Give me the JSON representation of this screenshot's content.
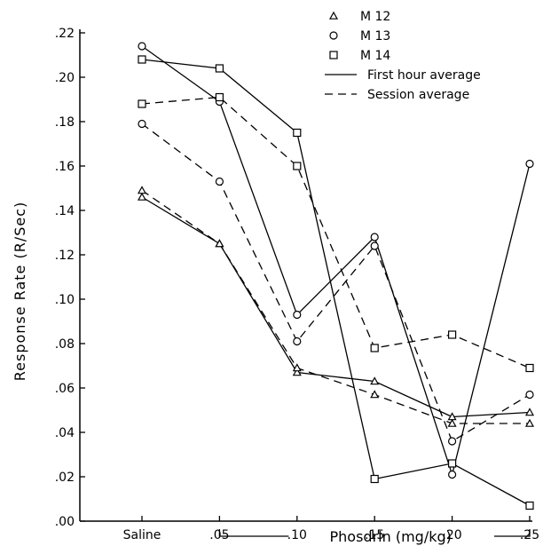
{
  "chart_data": {
    "type": "line",
    "title": "",
    "ylabel": "Response Rate (R/Sec)",
    "xlabel": "Phosdrin (mg/kg)",
    "categories": [
      "Saline",
      ".05",
      ".10",
      ".15",
      ".20",
      ".25"
    ],
    "y_ticks": [
      ".00",
      ".02",
      ".04",
      ".06",
      ".08",
      ".10",
      ".12",
      ".14",
      ".16",
      ".18",
      ".20",
      ".22"
    ],
    "ylim": [
      0,
      0.22
    ],
    "legend": {
      "placement": "top-right",
      "markers": [
        {
          "symbol": "triangle",
          "label": "M 12"
        },
        {
          "symbol": "circle",
          "label": "M 13"
        },
        {
          "symbol": "square",
          "label": "M 14"
        }
      ],
      "styles": [
        {
          "style": "solid",
          "label": "First hour average"
        },
        {
          "style": "dashed",
          "label": "Session average"
        }
      ]
    },
    "series": [
      {
        "subject": "M 12",
        "marker": "triangle",
        "style": "solid",
        "values": [
          0.146,
          0.125,
          0.067,
          0.063,
          0.047,
          0.049
        ]
      },
      {
        "subject": "M 12",
        "marker": "triangle",
        "style": "dashed",
        "values": [
          0.149,
          0.125,
          0.069,
          0.057,
          0.044,
          0.044
        ]
      },
      {
        "subject": "M 13",
        "marker": "circle",
        "style": "solid",
        "values": [
          0.214,
          0.189,
          0.093,
          0.128,
          0.021,
          0.161
        ]
      },
      {
        "subject": "M 13",
        "marker": "circle",
        "style": "dashed",
        "values": [
          0.179,
          0.153,
          0.081,
          0.124,
          0.036,
          0.057
        ]
      },
      {
        "subject": "M 14",
        "marker": "square",
        "style": "solid",
        "values": [
          0.208,
          0.204,
          0.175,
          0.019,
          0.026,
          0.007
        ]
      },
      {
        "subject": "M 14",
        "marker": "square",
        "style": "dashed",
        "values": [
          0.188,
          0.191,
          0.16,
          0.078,
          0.084,
          0.069
        ]
      }
    ]
  }
}
